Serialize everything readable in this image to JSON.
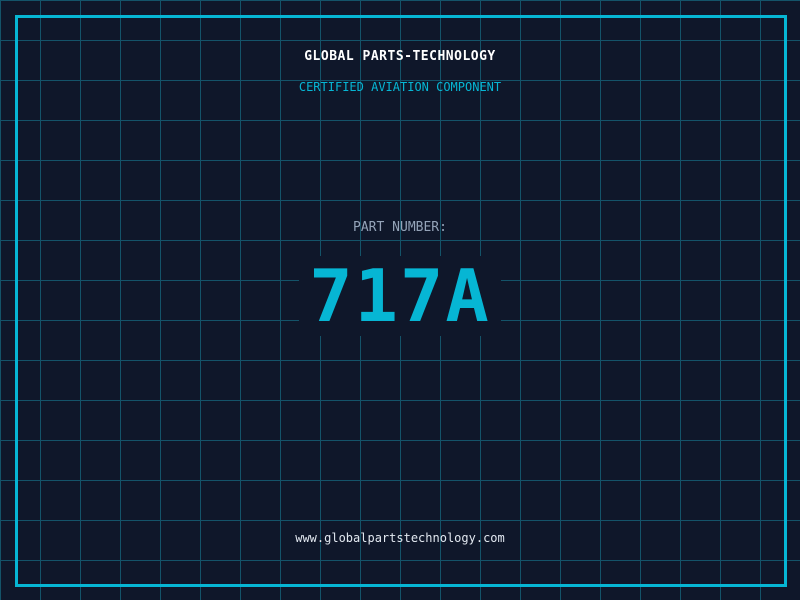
{
  "header": {
    "company": "GLOBAL PARTS-TECHNOLOGY",
    "subtitle": "CERTIFIED AVIATION COMPONENT"
  },
  "part": {
    "label": "PART NUMBER:",
    "number": "717A"
  },
  "footer": {
    "url": "www.globalpartstechnology.com"
  },
  "colors": {
    "background": "#0f172a",
    "accent": "#06b6d4",
    "grid": "#155e75",
    "label": "#94a3b8"
  }
}
